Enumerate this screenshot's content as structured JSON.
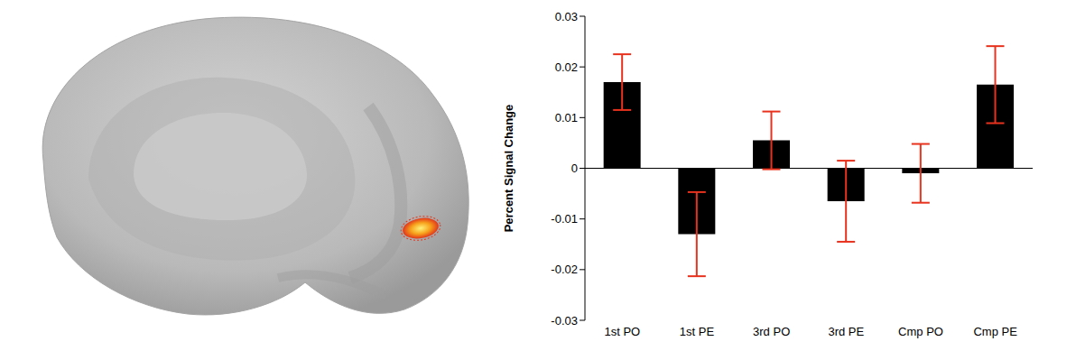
{
  "chart_data": {
    "type": "bar",
    "y_label": "Percent Signal Change",
    "categories": [
      "1st PO",
      "1st PE",
      "3rd PO",
      "3rd PE",
      "Cmp PO",
      "Cmp PE"
    ],
    "values": [
      0.017,
      -0.013,
      0.0055,
      -0.0065,
      -0.001,
      0.0165
    ],
    "errors": [
      0.0055,
      0.0083,
      0.0057,
      0.008,
      0.0058,
      0.0076
    ],
    "color": "#000000",
    "error_color": "#e8321e",
    "ylim": [
      -0.03,
      0.03
    ],
    "yticks": [
      -0.03,
      -0.02,
      -0.01,
      0,
      0.01,
      0.02,
      0.03
    ],
    "grid": false
  }
}
